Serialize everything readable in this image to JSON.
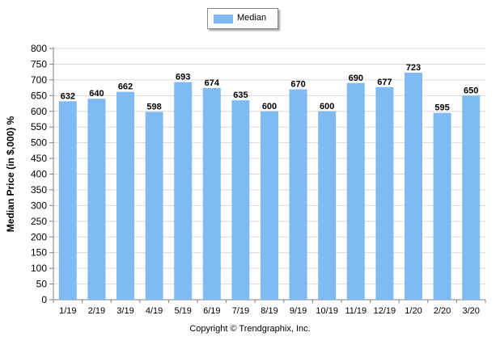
{
  "chart_data": {
    "type": "bar",
    "categories": [
      "1/19",
      "2/19",
      "3/19",
      "4/19",
      "5/19",
      "6/19",
      "7/19",
      "8/19",
      "9/19",
      "10/19",
      "11/19",
      "12/19",
      "1/20",
      "2/20",
      "3/20"
    ],
    "series": [
      {
        "name": "Median",
        "values": [
          632,
          640,
          662,
          598,
          693,
          674,
          635,
          600,
          670,
          600,
          690,
          677,
          723,
          595,
          650
        ]
      }
    ],
    "ylabel": "Median Price (in $,000) %",
    "xlabel": "",
    "ylim": [
      0,
      800
    ],
    "yticks": [
      0,
      50,
      100,
      150,
      200,
      250,
      300,
      350,
      400,
      450,
      500,
      550,
      600,
      650,
      700,
      750,
      800
    ],
    "grid": true,
    "legend": "top-center",
    "bar_color": "#7fbaf2"
  },
  "footer": {
    "copyright": "Copyright © Trendgraphix, Inc."
  }
}
